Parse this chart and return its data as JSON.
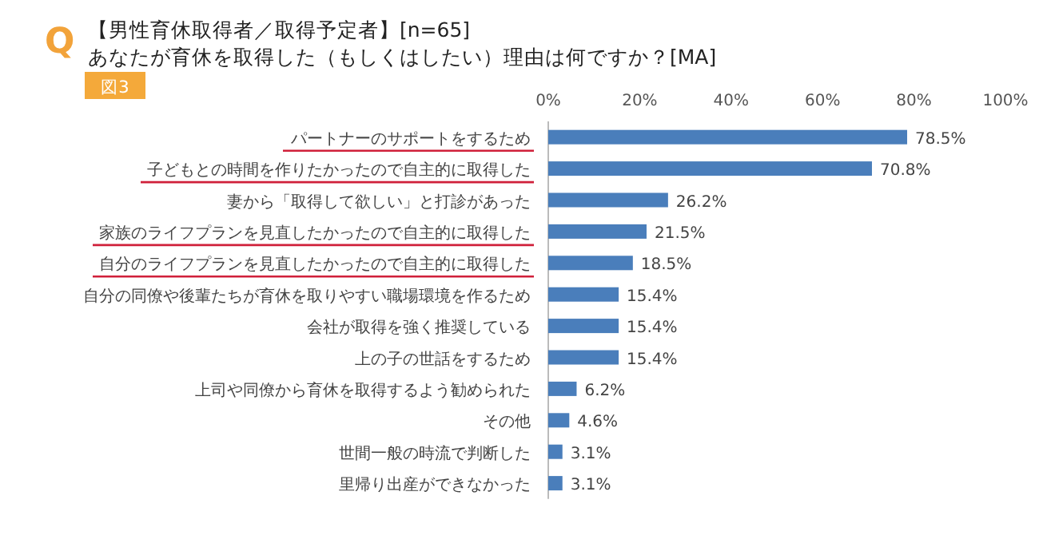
{
  "chart_data": {
    "type": "bar",
    "orientation": "horizontal",
    "title": "【男性育休取得者／取得予定者】[n=65]",
    "subtitle": "あなたが育休を取得した（もしくはしたい）理由は何ですか？[MA]",
    "annotations": [
      "Q",
      "図3"
    ],
    "categories": [
      "パートナーのサポートをするため",
      "子どもとの時間を作りたかったので自主的に取得した",
      "妻から「取得して欲しい」と打診があった",
      "家族のライフプランを見直したかったので自主的に取得した",
      "自分のライフプランを見直したかったので自主的に取得した",
      "自分の同僚や後輩たちが育休を取りやすい職場環境を作るため",
      "会社が取得を強く推奨している",
      "上の子の世話をするため",
      "上司や同僚から育休を取得するよう勧められた",
      "その他",
      "世間一般の時流で判断した",
      "里帰り出産ができなかった"
    ],
    "values": [
      78.5,
      70.8,
      26.2,
      21.5,
      18.5,
      15.4,
      15.4,
      15.4,
      6.2,
      4.6,
      3.1,
      3.1
    ],
    "value_labels": [
      "78.5%",
      "70.8%",
      "26.2%",
      "21.5%",
      "18.5%",
      "15.4%",
      "15.4%",
      "15.4%",
      "6.2%",
      "4.6%",
      "3.1%",
      "3.1%"
    ],
    "color": "#4a7ebb",
    "xlim": [
      0,
      100
    ],
    "xticks": [
      {
        "value": 0,
        "label": "0%"
      },
      {
        "value": 20,
        "label": "20%"
      },
      {
        "value": 40,
        "label": "40%"
      },
      {
        "value": 60,
        "label": "60%"
      },
      {
        "value": 80,
        "label": "80%"
      },
      {
        "value": 100,
        "label": "100%"
      }
    ],
    "grid": false
  }
}
